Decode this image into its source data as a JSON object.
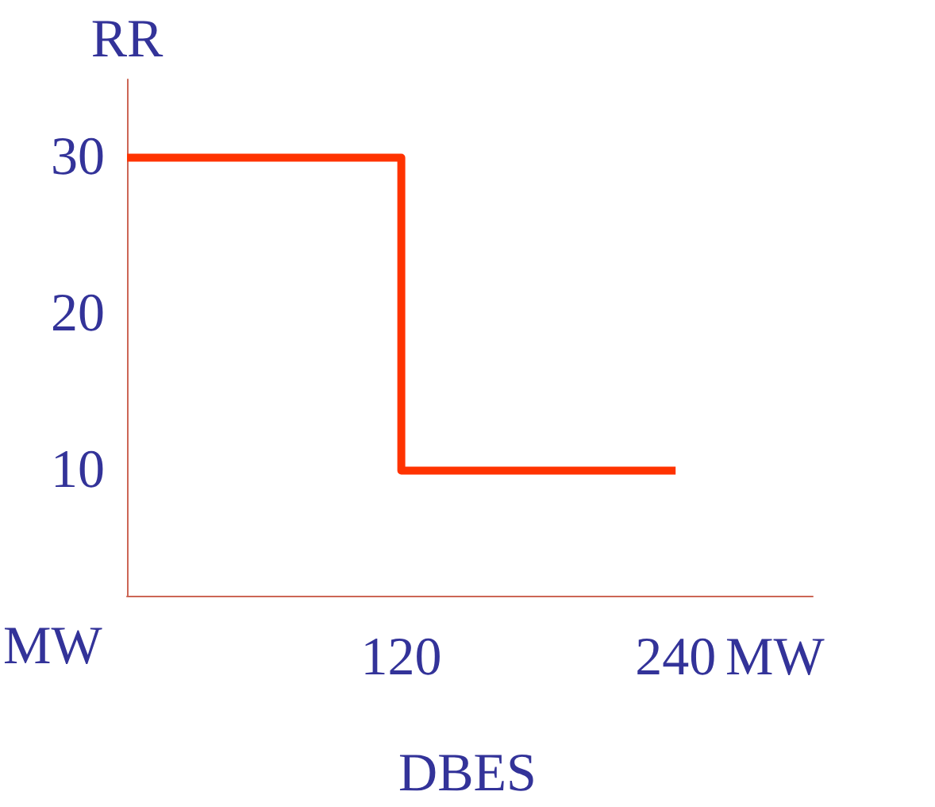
{
  "chart_data": {
    "type": "step",
    "title": "DBES",
    "xlabel": "MW",
    "ylabel": "RR",
    "annotations": [
      "MW"
    ],
    "x": [
      0,
      120,
      240
    ],
    "series": [
      {
        "color": "#ff3300",
        "values": [
          30,
          10,
          10
        ]
      }
    ],
    "xlim": [
      0,
      300
    ],
    "xticks": [
      120,
      240
    ],
    "ylim": [
      2,
      35
    ],
    "yticks": [
      10,
      20,
      30
    ],
    "grid": false,
    "marker": "none",
    "line_style": "solid"
  }
}
